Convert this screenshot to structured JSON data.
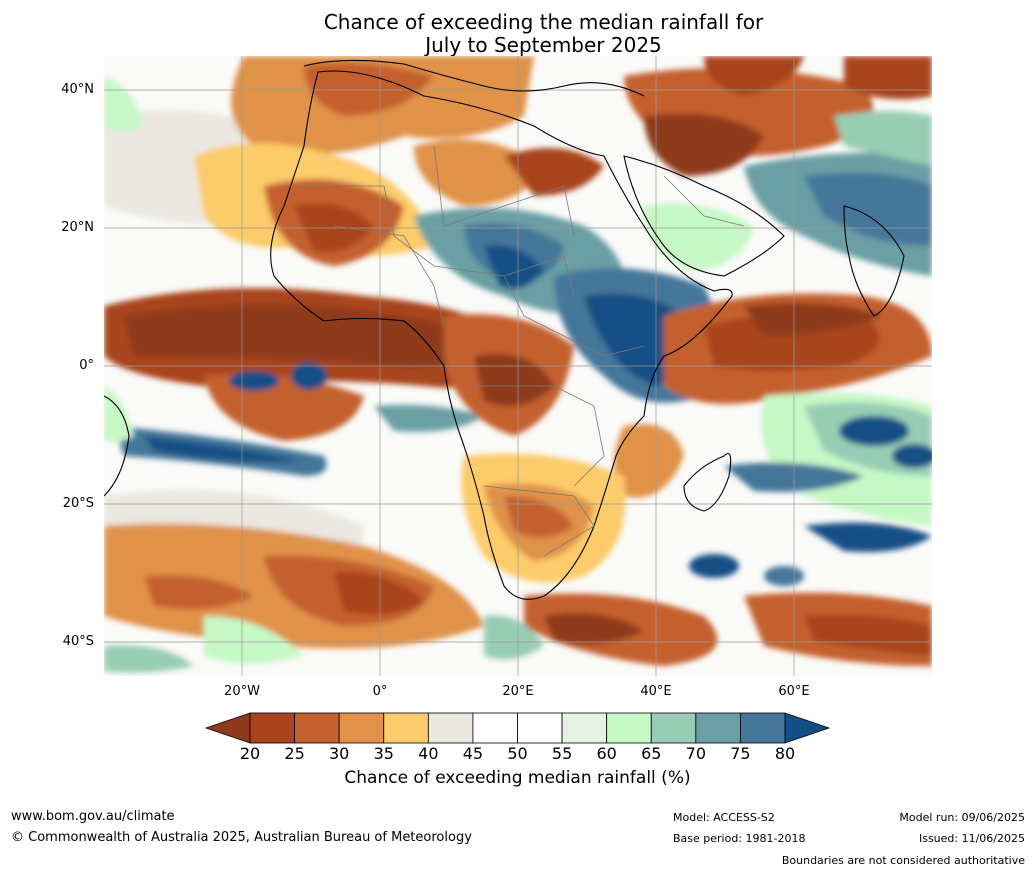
{
  "title": {
    "line1": "Chance of exceeding the median rainfall for",
    "line2": "July to September 2025"
  },
  "map": {
    "region": "Africa and surrounding oceans",
    "lat_labels": [
      "40°N",
      "20°N",
      "0°",
      "20°S",
      "40°S"
    ],
    "lon_labels": [
      "20°W",
      "0°",
      "20°E",
      "40°E",
      "60°E"
    ],
    "gridlines": true,
    "dominant_patterns": [
      {
        "area": "West Africa Sahel belt and tropical Atlantic near equator",
        "category": "20-25"
      },
      {
        "area": "North Africa and Mediterranean coast",
        "category": "30-40"
      },
      {
        "area": "Central Sahara / Chad / Sudan",
        "category": "70-80"
      },
      {
        "area": "Ethiopia / South Sudan / Uganda",
        "category": "80"
      },
      {
        "area": "Arabian Sea / Pakistan / India",
        "category": "75-80"
      },
      {
        "area": "Western Indian Ocean near equator",
        "category": "20-30"
      },
      {
        "area": "Southern Africa",
        "category": "30-45"
      },
      {
        "area": "South Atlantic",
        "category": "30-40"
      },
      {
        "area": "Southern Indian Ocean east of Madagascar",
        "category": "70-80"
      }
    ]
  },
  "colorbar": {
    "ticks": [
      "20",
      "25",
      "30",
      "35",
      "40",
      "45",
      "50",
      "55",
      "60",
      "65",
      "70",
      "75",
      "80"
    ],
    "colors": [
      "#8e3a1e",
      "#a9441f",
      "#c4612e",
      "#e0924a",
      "#fccb6b",
      "#ebe7e1",
      "#ffffff",
      "#ffffff",
      "#e4f3e4",
      "#c6f8c6",
      "#97cdb4",
      "#6b9fa4",
      "#44779a",
      "#134f86"
    ],
    "label": "Chance of exceeding median rainfall (%)"
  },
  "footer": {
    "url": "www.bom.gov.au/climate",
    "copyright": "© Commonwealth of Australia 2025, Australian Bureau of Meteorology",
    "model": "Model: ACCESS-S2",
    "base_period": "Base period: 1981-2018",
    "model_run": "Model run: 09/06/2025",
    "issued": "Issued: 11/06/2025",
    "boundaries": "Boundaries are not considered authoritative"
  }
}
